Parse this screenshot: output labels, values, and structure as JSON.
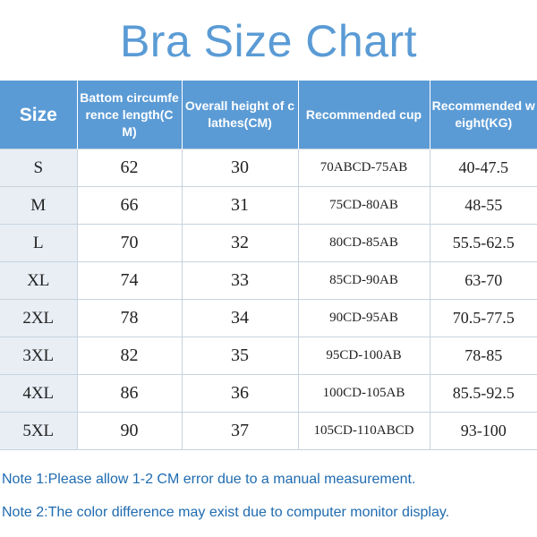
{
  "title": "Bra Size Chart",
  "table": {
    "headers": [
      "Size",
      "Battom circumference length(CM)",
      "Overall height of clathes(CM)",
      "Recommended cup",
      "Recommended weight(KG)"
    ],
    "rows": [
      [
        "S",
        "62",
        "30",
        "70ABCD-75AB",
        "40-47.5"
      ],
      [
        "M",
        "66",
        "31",
        "75CD-80AB",
        "48-55"
      ],
      [
        "L",
        "70",
        "32",
        "80CD-85AB",
        "55.5-62.5"
      ],
      [
        "XL",
        "74",
        "33",
        "85CD-90AB",
        "63-70"
      ],
      [
        "2XL",
        "78",
        "34",
        "90CD-95AB",
        "70.5-77.5"
      ],
      [
        "3XL",
        "82",
        "35",
        "95CD-100AB",
        "78-85"
      ],
      [
        "4XL",
        "86",
        "36",
        "100CD-105AB",
        "85.5-92.5"
      ],
      [
        "5XL",
        "90",
        "37",
        "105CD-110ABCD",
        "93-100"
      ]
    ]
  },
  "notes": [
    "Note 1:Please allow 1-2 CM error due to a manual measurement.",
    "Note 2:The color difference may exist due to computer monitor display."
  ]
}
